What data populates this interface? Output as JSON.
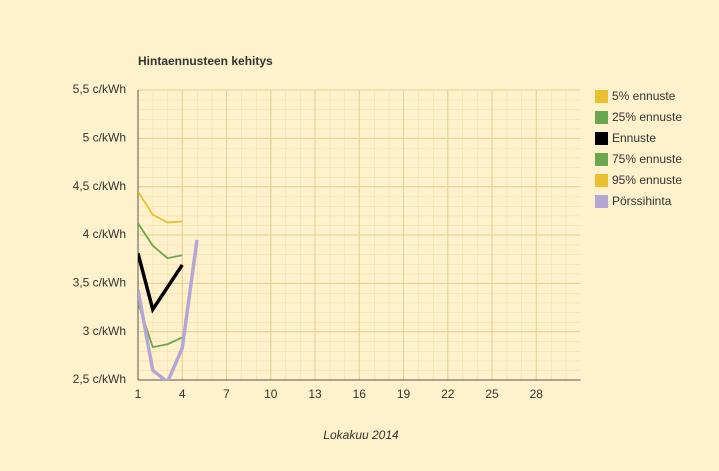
{
  "chart_data": {
    "type": "line",
    "title": "Hintaennusteen kehitys",
    "xlabel": "Lokakuu 2014",
    "x": [
      1,
      2,
      3,
      4,
      5
    ],
    "series": [
      {
        "name": "5% ennuste",
        "color": "#e8c030",
        "values": [
          null,
          null,
          null,
          null,
          null
        ]
      },
      {
        "name": "25% ennuste",
        "color": "#6aa84f",
        "values": [
          3.3,
          2.84,
          2.87,
          2.94,
          null
        ]
      },
      {
        "name": "Ennuste",
        "color": "#000000",
        "values": [
          3.81,
          3.23,
          3.46,
          3.69,
          null
        ]
      },
      {
        "name": "75% ennuste",
        "color": "#6aa84f",
        "values": [
          4.12,
          3.89,
          3.76,
          3.79,
          null
        ]
      },
      {
        "name": "95% ennuste",
        "color": "#e8c030",
        "values": [
          4.45,
          4.21,
          4.13,
          4.14,
          null
        ]
      },
      {
        "name": "Pörssihinta",
        "color": "#b4a7d6",
        "values": [
          3.43,
          2.6,
          2.48,
          2.83,
          3.95
        ]
      }
    ],
    "xlim": [
      1,
      31
    ],
    "xticks": [
      1,
      4,
      7,
      10,
      13,
      16,
      19,
      22,
      25,
      28
    ],
    "ylim": [
      2.5,
      5.5
    ],
    "yticks": [
      {
        "value": 2.5,
        "label": "2,5 c/kWh"
      },
      {
        "value": 3,
        "label": "3 c/kWh"
      },
      {
        "value": 3.5,
        "label": "3,5 c/kWh"
      },
      {
        "value": 4,
        "label": "4 c/kWh"
      },
      {
        "value": 4.5,
        "label": "4,5 c/kWh"
      },
      {
        "value": 5,
        "label": "5 c/kWh"
      },
      {
        "value": 5.5,
        "label": "5,5 c/kWh"
      }
    ],
    "grid": true,
    "legend": "right"
  }
}
